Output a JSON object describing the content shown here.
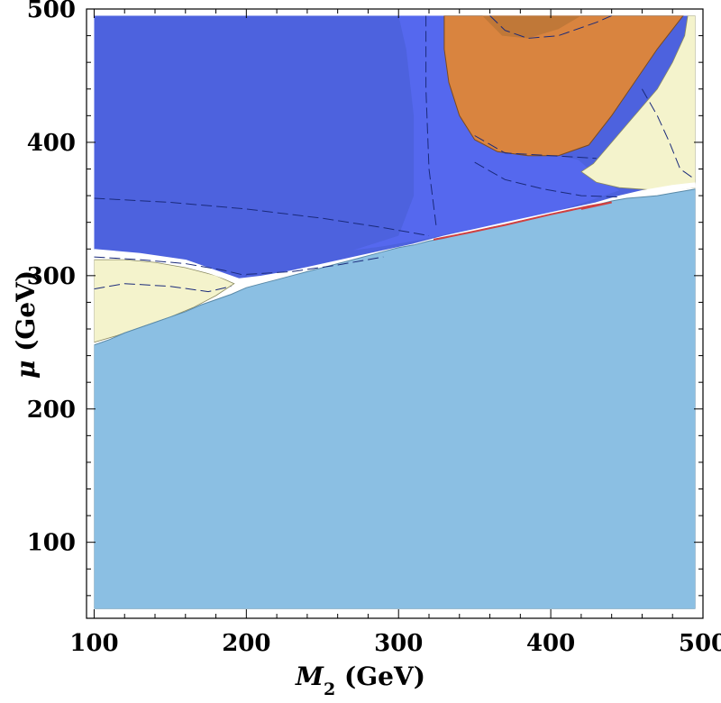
{
  "chart_data": {
    "type": "contour",
    "xlabel_parts": {
      "sym": "M",
      "sub": "2",
      "unit": " (GeV)"
    },
    "ylabel_parts": {
      "sym": "μ",
      "unit": " (GeV)"
    },
    "xlim": [
      95,
      500
    ],
    "ylim": [
      43,
      500
    ],
    "data_range": {
      "x": [
        100,
        495
      ],
      "y": [
        50,
        495
      ]
    },
    "x_ticks": [
      100,
      200,
      300,
      400,
      500
    ],
    "y_ticks": [
      100,
      200,
      300,
      400,
      500
    ],
    "x_minor_step": 20,
    "y_minor_step": 20,
    "colors": {
      "light_blue": "#8bbfe3",
      "dark_blue": "#4d62de",
      "med_blue": "#5568ee",
      "orange": "#d9843f",
      "dark_orange": "#c07838",
      "cream": "#f4f3cc",
      "red": "#d04040",
      "line": "#1a2a7a"
    },
    "regions": {
      "light_blue_boundary": [
        [
          100,
          248
        ],
        [
          110,
          252
        ],
        [
          120,
          257
        ],
        [
          130,
          261
        ],
        [
          140,
          265
        ],
        [
          150,
          269
        ],
        [
          160,
          273
        ],
        [
          170,
          278
        ],
        [
          180,
          282
        ],
        [
          190,
          286
        ],
        [
          200,
          291
        ],
        [
          210,
          294
        ],
        [
          220,
          297
        ],
        [
          230,
          300
        ],
        [
          240,
          303
        ],
        [
          250,
          306
        ],
        [
          260,
          309
        ],
        [
          270,
          312
        ],
        [
          280,
          315
        ],
        [
          290,
          318
        ],
        [
          300,
          321
        ],
        [
          310,
          323
        ],
        [
          320,
          326
        ],
        [
          330,
          328
        ],
        [
          340,
          331
        ],
        [
          350,
          333
        ],
        [
          360,
          336
        ],
        [
          370,
          338
        ],
        [
          380,
          341
        ],
        [
          390,
          343
        ],
        [
          400,
          346
        ],
        [
          410,
          348
        ],
        [
          420,
          351
        ],
        [
          430,
          353
        ],
        [
          440,
          356
        ],
        [
          450,
          358
        ],
        [
          460,
          359
        ],
        [
          470,
          360
        ],
        [
          480,
          362
        ],
        [
          490,
          364
        ],
        [
          495,
          365
        ]
      ],
      "upper_region_boundary": [
        [
          100,
          318
        ],
        [
          130,
          315
        ],
        [
          160,
          310
        ],
        [
          180,
          302
        ],
        [
          195,
          296
        ],
        [
          210,
          298
        ],
        [
          230,
          302
        ],
        [
          250,
          307
        ],
        [
          270,
          312
        ],
        [
          290,
          317
        ],
        [
          310,
          322
        ],
        [
          330,
          328
        ],
        [
          350,
          333
        ],
        [
          370,
          338
        ],
        [
          390,
          343
        ],
        [
          410,
          348
        ],
        [
          430,
          353
        ],
        [
          445,
          358
        ],
        [
          460,
          362
        ],
        [
          480,
          366
        ],
        [
          495,
          368
        ]
      ],
      "cream_left": [
        [
          100,
          250
        ],
        [
          100,
          312
        ],
        [
          120,
          312
        ],
        [
          140,
          310
        ],
        [
          160,
          306
        ],
        [
          180,
          300
        ],
        [
          192,
          294
        ],
        [
          180,
          285
        ],
        [
          165,
          276
        ],
        [
          150,
          269
        ],
        [
          130,
          261
        ],
        [
          115,
          255
        ]
      ],
      "cream_right": [
        [
          495,
          495
        ],
        [
          495,
          366
        ],
        [
          470,
          364
        ],
        [
          445,
          366
        ],
        [
          430,
          370
        ],
        [
          420,
          378
        ],
        [
          428,
          384
        ],
        [
          440,
          400
        ],
        [
          455,
          420
        ],
        [
          470,
          440
        ],
        [
          480,
          460
        ],
        [
          488,
          480
        ],
        [
          490,
          495
        ]
      ],
      "orange": [
        [
          330,
          495
        ],
        [
          487,
          495
        ],
        [
          470,
          470
        ],
        [
          455,
          445
        ],
        [
          440,
          420
        ],
        [
          425,
          398
        ],
        [
          405,
          390
        ],
        [
          385,
          390
        ],
        [
          365,
          393
        ],
        [
          350,
          402
        ],
        [
          340,
          420
        ],
        [
          333,
          445
        ],
        [
          330,
          470
        ]
      ],
      "med_blue": [
        [
          300,
          495
        ],
        [
          330,
          495
        ],
        [
          330,
          470
        ],
        [
          333,
          445
        ],
        [
          340,
          420
        ],
        [
          350,
          402
        ],
        [
          365,
          393
        ],
        [
          385,
          390
        ],
        [
          405,
          390
        ],
        [
          418,
          387
        ],
        [
          430,
          375
        ],
        [
          445,
          364
        ],
        [
          425,
          356
        ],
        [
          400,
          347
        ],
        [
          370,
          340
        ],
        [
          340,
          333
        ],
        [
          315,
          327
        ],
        [
          290,
          322
        ],
        [
          270,
          319
        ],
        [
          300,
          330
        ],
        [
          310,
          360
        ],
        [
          310,
          420
        ],
        [
          305,
          470
        ]
      ],
      "dark_orange": [
        [
          355,
          495
        ],
        [
          420,
          495
        ],
        [
          405,
          485
        ],
        [
          385,
          478
        ],
        [
          368,
          480
        ]
      ],
      "red_strip": [
        [
          323,
          327
        ],
        [
          345,
          332
        ],
        [
          370,
          338
        ],
        [
          400,
          346
        ],
        [
          425,
          352
        ],
        [
          440,
          355
        ],
        [
          420,
          350
        ]
      ]
    },
    "dashed_contours": [
      [
        [
          100,
          358
        ],
        [
          150,
          355
        ],
        [
          200,
          350
        ],
        [
          250,
          343
        ],
        [
          290,
          336
        ],
        [
          320,
          330
        ]
      ],
      [
        [
          100,
          314
        ],
        [
          130,
          312
        ],
        [
          160,
          309
        ],
        [
          185,
          304
        ],
        [
          200,
          300
        ]
      ],
      [
        [
          200,
          301
        ],
        [
          230,
          303
        ],
        [
          260,
          308
        ],
        [
          290,
          314
        ]
      ],
      [
        [
          318,
          495
        ],
        [
          318,
          440
        ],
        [
          320,
          380
        ],
        [
          325,
          335
        ]
      ],
      [
        [
          350,
          385
        ],
        [
          370,
          372
        ],
        [
          395,
          365
        ],
        [
          420,
          360
        ],
        [
          445,
          359
        ]
      ],
      [
        [
          360,
          495
        ],
        [
          370,
          484
        ],
        [
          385,
          478
        ],
        [
          405,
          480
        ],
        [
          430,
          490
        ],
        [
          440,
          495
        ]
      ],
      [
        [
          350,
          405
        ],
        [
          370,
          392
        ],
        [
          400,
          390
        ],
        [
          430,
          388
        ]
      ],
      [
        [
          460,
          440
        ],
        [
          470,
          420
        ],
        [
          478,
          400
        ],
        [
          485,
          380
        ],
        [
          495,
          372
        ]
      ],
      [
        [
          100,
          290
        ],
        [
          120,
          294
        ],
        [
          150,
          292
        ],
        [
          175,
          288
        ],
        [
          190,
          292
        ]
      ]
    ]
  }
}
